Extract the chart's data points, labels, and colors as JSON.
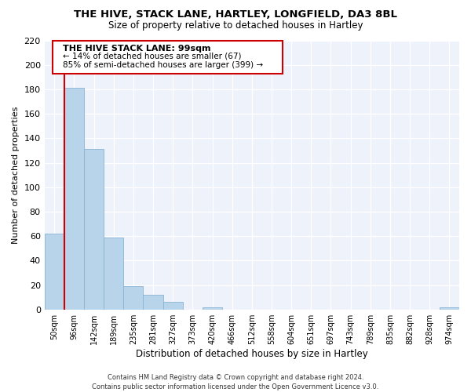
{
  "title": "THE HIVE, STACK LANE, HARTLEY, LONGFIELD, DA3 8BL",
  "subtitle": "Size of property relative to detached houses in Hartley",
  "xlabel": "Distribution of detached houses by size in Hartley",
  "ylabel": "Number of detached properties",
  "bar_color": "#b8d4ea",
  "line_color": "#cc0000",
  "background_color": "#eef2fb",
  "bar_edge_color": "#8ab4d4",
  "categories": [
    "50sqm",
    "96sqm",
    "142sqm",
    "189sqm",
    "235sqm",
    "281sqm",
    "327sqm",
    "373sqm",
    "420sqm",
    "466sqm",
    "512sqm",
    "558sqm",
    "604sqm",
    "651sqm",
    "697sqm",
    "743sqm",
    "789sqm",
    "835sqm",
    "882sqm",
    "928sqm",
    "974sqm"
  ],
  "values": [
    62,
    181,
    131,
    59,
    19,
    12,
    6,
    0,
    2,
    0,
    0,
    0,
    0,
    0,
    0,
    0,
    0,
    0,
    0,
    0,
    2
  ],
  "ylim": [
    0,
    220
  ],
  "yticks": [
    0,
    20,
    40,
    60,
    80,
    100,
    120,
    140,
    160,
    180,
    200,
    220
  ],
  "vline_index": 1,
  "annotation_title": "THE HIVE STACK LANE: 99sqm",
  "annotation_line1": "← 14% of detached houses are smaller (67)",
  "annotation_line2": "85% of semi-detached houses are larger (399) →",
  "footer_line1": "Contains HM Land Registry data © Crown copyright and database right 2024.",
  "footer_line2": "Contains public sector information licensed under the Open Government Licence v3.0."
}
